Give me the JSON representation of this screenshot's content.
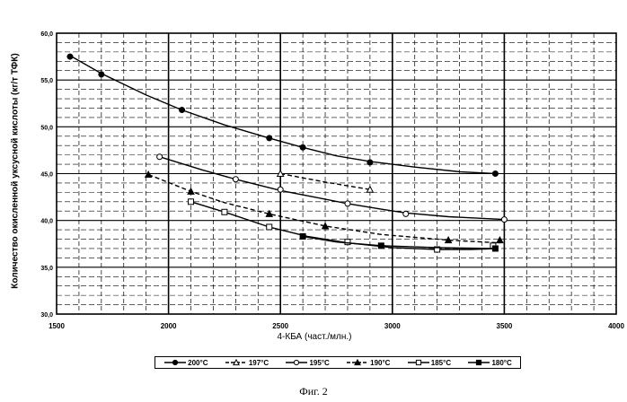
{
  "caption": "Фиг. 2",
  "chart_data": {
    "type": "line",
    "xlabel": "4-КБА (част./млн.)",
    "ylabel": "Количество окисленной уксусной кислоты (кг/т ТФК)",
    "xlim": [
      1500,
      4000
    ],
    "ylim": [
      30.0,
      60.0
    ],
    "x_ticks": [
      "1500",
      "2000",
      "2500",
      "3000",
      "3500",
      "4000"
    ],
    "y_ticks": [
      "30,0",
      "35,0",
      "40,0",
      "45,0",
      "50,0",
      "55,0",
      "60,0"
    ],
    "grid": true,
    "legend_position": "bottom",
    "series": [
      {
        "name": "200°C",
        "marker": "filled-circle",
        "dash": "solid",
        "x": [
          1560,
          1700,
          2060,
          2450,
          2600,
          2900,
          3460
        ],
        "y": [
          57.5,
          55.6,
          51.8,
          48.8,
          47.8,
          46.2,
          45.0
        ],
        "curve_x": [
          1560,
          1700,
          1900,
          2060,
          2250,
          2450,
          2600,
          2750,
          2900,
          3100,
          3300,
          3460
        ],
        "curve_y": [
          57.6,
          55.7,
          53.4,
          51.8,
          50.2,
          48.8,
          47.8,
          46.9,
          46.3,
          45.7,
          45.2,
          45.0
        ]
      },
      {
        "name": "197°C",
        "marker": "open-triangle",
        "dash": "dashed",
        "x": [
          2500,
          2900
        ],
        "y": [
          45.0,
          43.3
        ],
        "curve_x": [
          2500,
          2700,
          2900
        ],
        "curve_y": [
          45.0,
          44.1,
          43.3
        ]
      },
      {
        "name": "195°C",
        "marker": "open-circle",
        "dash": "solid",
        "x": [
          1960,
          2300,
          2500,
          2800,
          3060,
          3500
        ],
        "y": [
          46.8,
          44.4,
          43.3,
          41.8,
          40.7,
          40.1
        ],
        "curve_x": [
          1960,
          2150,
          2300,
          2500,
          2650,
          2800,
          2950,
          3060,
          3250,
          3500
        ],
        "curve_y": [
          46.8,
          45.4,
          44.4,
          43.2,
          42.5,
          41.8,
          41.2,
          40.8,
          40.4,
          40.1
        ]
      },
      {
        "name": "190°C",
        "marker": "filled-triangle",
        "dash": "dashed",
        "x": [
          1910,
          2100,
          2450,
          2700,
          3250,
          3480
        ],
        "y": [
          44.9,
          43.1,
          40.7,
          39.4,
          37.9,
          37.9
        ],
        "curve_x": [
          1910,
          2100,
          2250,
          2450,
          2700,
          2950,
          3250,
          3480
        ],
        "curve_y": [
          44.9,
          43.1,
          41.9,
          40.7,
          39.4,
          38.5,
          37.9,
          37.6
        ]
      },
      {
        "name": "185°C",
        "marker": "open-square",
        "dash": "solid",
        "x": [
          2100,
          2250,
          2450,
          2800,
          3200,
          3450
        ],
        "y": [
          42.0,
          40.9,
          39.3,
          37.7,
          36.9,
          37.3
        ],
        "curve_x": [
          2100,
          2250,
          2450,
          2620,
          2800,
          3000,
          3200,
          3350,
          3470
        ],
        "curve_y": [
          42.0,
          40.9,
          39.3,
          38.3,
          37.6,
          37.1,
          36.9,
          36.9,
          37.0
        ]
      },
      {
        "name": "180°C",
        "marker": "filled-square",
        "dash": "solid",
        "x": [
          2600,
          2950,
          3460
        ],
        "y": [
          38.3,
          37.3,
          37.0
        ],
        "curve_x": [
          2600,
          2750,
          2950,
          3200,
          3460
        ],
        "curve_y": [
          38.3,
          37.7,
          37.3,
          37.1,
          37.0
        ]
      }
    ]
  },
  "colors": {
    "ink": "#000000",
    "background": "#ffffff",
    "grid": "#000000"
  }
}
